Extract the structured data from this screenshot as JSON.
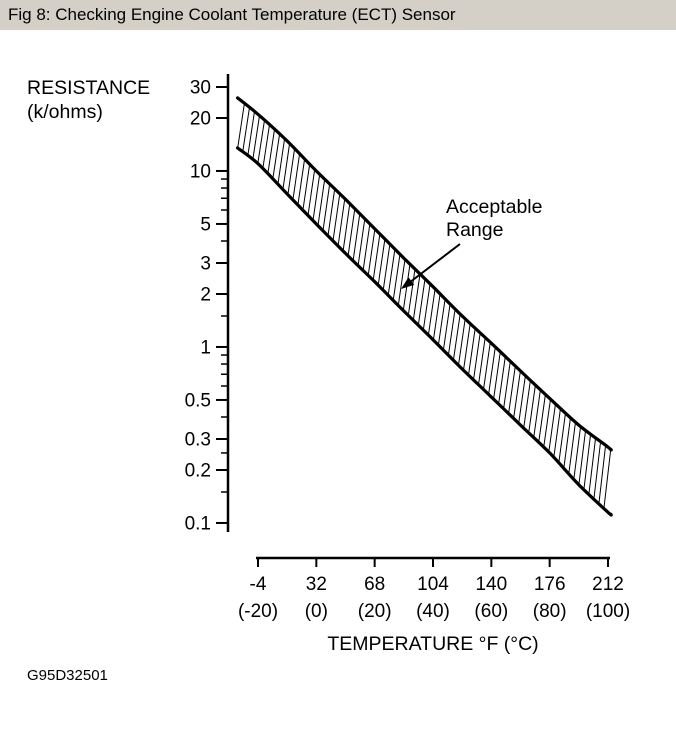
{
  "header": {
    "title": "Fig 8: Checking Engine Coolant Temperature (ECT) Sensor"
  },
  "footnote": "G95D32501",
  "colors": {
    "ink": "#000000",
    "header_bg": "#d4d0c8",
    "background": "#ffffff"
  },
  "chart_data": {
    "type": "line",
    "y_axis": {
      "label_line1": "RESISTANCE",
      "label_line2": "(k/ohms)",
      "scale": "log",
      "range": [
        0.1,
        30
      ],
      "major_ticks": [
        30,
        20,
        10,
        5,
        3,
        2,
        1,
        0.5,
        0.3,
        0.2,
        0.1
      ],
      "major_tick_labels": [
        "30",
        "20",
        "10",
        "5",
        "3",
        "2",
        "1",
        "0.5",
        "0.3",
        "0.2",
        "0.1"
      ],
      "minor_ticks": [
        9,
        8,
        7,
        6,
        4,
        1.5,
        0.9,
        0.8,
        0.7,
        0.6,
        0.4,
        0.25,
        0.15
      ]
    },
    "x_axis": {
      "label": "TEMPERATURE °F (°C)",
      "range_c": [
        -20,
        100
      ],
      "tick_values_c": [
        -20,
        0,
        20,
        40,
        60,
        80,
        100
      ],
      "tick_labels_f": [
        "-4",
        "32",
        "68",
        "104",
        "140",
        "176",
        "212"
      ],
      "tick_labels_c": [
        "(-20)",
        "(0)",
        "(20)",
        "(40)",
        "(60)",
        "(80)",
        "(100)"
      ]
    },
    "annotation": {
      "line1": "Acceptable",
      "line2": "Range"
    },
    "band": {
      "style": "hatched",
      "between": [
        "upper-limit",
        "lower-limit"
      ]
    },
    "series": [
      {
        "name": "upper-limit",
        "x_c": [
          -27,
          -20,
          -10,
          0,
          10,
          20,
          30,
          40,
          50,
          60,
          70,
          80,
          90,
          100,
          101
        ],
        "r_kohm": [
          26,
          21,
          14.8,
          10,
          6.9,
          4.7,
          3.2,
          2.2,
          1.5,
          1.05,
          0.73,
          0.51,
          0.36,
          0.27,
          0.26
        ]
      },
      {
        "name": "lower-limit",
        "x_c": [
          -27,
          -20,
          -10,
          0,
          10,
          20,
          30,
          40,
          50,
          60,
          70,
          80,
          90,
          100,
          101
        ],
        "r_kohm": [
          13.5,
          11,
          7.4,
          5.0,
          3.4,
          2.35,
          1.6,
          1.1,
          0.75,
          0.52,
          0.36,
          0.25,
          0.165,
          0.115,
          0.112
        ]
      }
    ]
  }
}
